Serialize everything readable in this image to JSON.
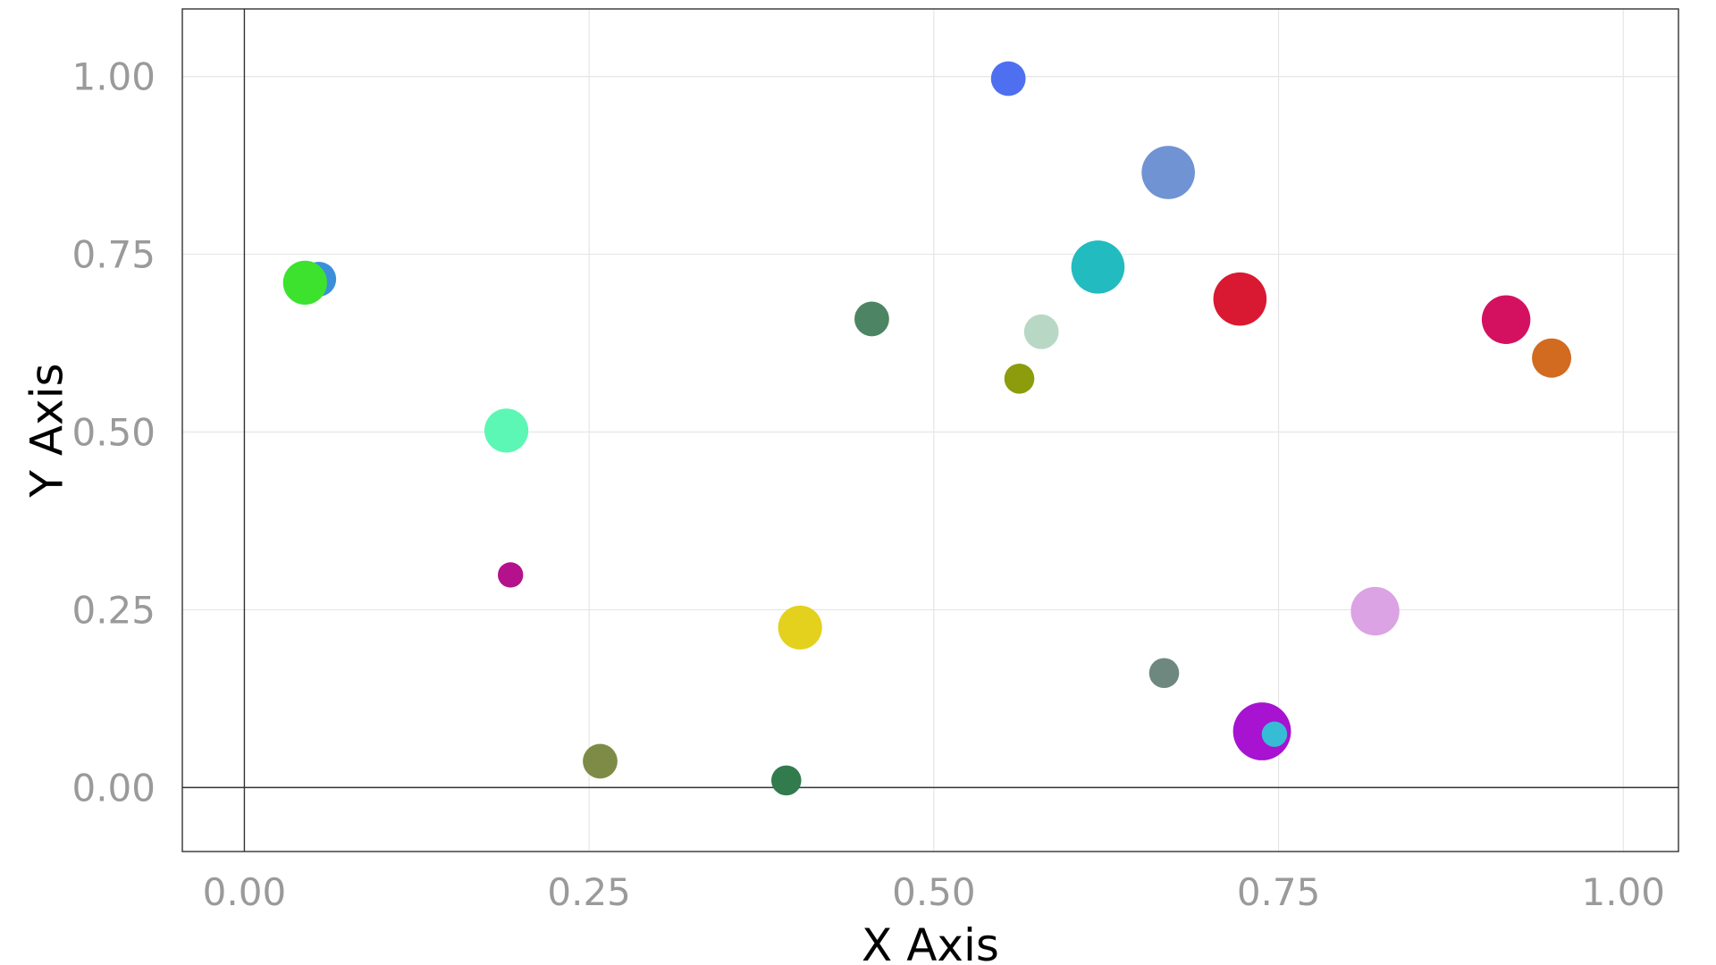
{
  "chart_data": {
    "type": "scatter",
    "title": "",
    "xlabel": "X Axis",
    "ylabel": "Y Axis",
    "xlim": [
      -0.045,
      1.04
    ],
    "ylim": [
      -0.09,
      1.095
    ],
    "x_ticks": [
      0.0,
      0.25,
      0.5,
      0.75,
      1.0
    ],
    "y_ticks": [
      0.0,
      0.25,
      0.5,
      0.75,
      1.0
    ],
    "x_tick_labels": [
      "0.00",
      "0.25",
      "0.50",
      "0.75",
      "1.00"
    ],
    "y_tick_labels": [
      "0.00",
      "0.25",
      "0.50",
      "0.75",
      "1.00"
    ],
    "grid": true,
    "legend": "none",
    "points": [
      {
        "x": 0.054,
        "y": 0.715,
        "size": 4,
        "color": "#3a8fd8"
      },
      {
        "x": 0.044,
        "y": 0.71,
        "size": 6,
        "color": "#3de22e"
      },
      {
        "x": 0.19,
        "y": 0.502,
        "size": 6,
        "color": "#5cf7b4"
      },
      {
        "x": 0.193,
        "y": 0.299,
        "size": 2,
        "color": "#b5118c"
      },
      {
        "x": 0.258,
        "y": 0.037,
        "size": 4,
        "color": "#7e8b46"
      },
      {
        "x": 0.393,
        "y": 0.01,
        "size": 3,
        "color": "#317b4d"
      },
      {
        "x": 0.403,
        "y": 0.225,
        "size": 6,
        "color": "#e3d11d"
      },
      {
        "x": 0.455,
        "y": 0.659,
        "size": 4,
        "color": "#4d8463"
      },
      {
        "x": 0.554,
        "y": 0.997,
        "size": 4,
        "color": "#4e6ff0"
      },
      {
        "x": 0.562,
        "y": 0.575,
        "size": 3,
        "color": "#8c9c0c"
      },
      {
        "x": 0.578,
        "y": 0.641,
        "size": 4,
        "color": "#b8d8c5"
      },
      {
        "x": 0.619,
        "y": 0.732,
        "size": 8,
        "color": "#22bbbf"
      },
      {
        "x": 0.67,
        "y": 0.865,
        "size": 8,
        "color": "#6f93d3"
      },
      {
        "x": 0.667,
        "y": 0.161,
        "size": 3,
        "color": "#6e8880"
      },
      {
        "x": 0.722,
        "y": 0.687,
        "size": 8,
        "color": "#d91932"
      },
      {
        "x": 0.738,
        "y": 0.079,
        "size": 9,
        "color": "#a713d1"
      },
      {
        "x": 0.747,
        "y": 0.075,
        "size": 2,
        "color": "#36bcd5"
      },
      {
        "x": 0.82,
        "y": 0.248,
        "size": 7,
        "color": "#dba3e3"
      },
      {
        "x": 0.915,
        "y": 0.658,
        "size": 7,
        "color": "#d41161"
      },
      {
        "x": 0.948,
        "y": 0.604,
        "size": 5,
        "color": "#d26a20"
      }
    ]
  }
}
